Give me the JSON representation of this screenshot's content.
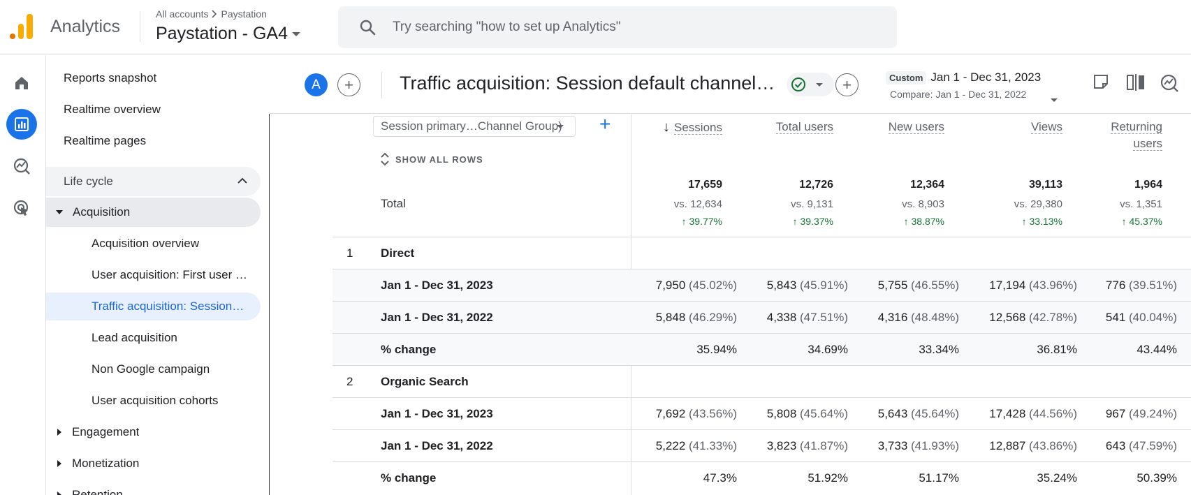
{
  "header": {
    "app_name": "Analytics",
    "breadcrumb": [
      "All accounts",
      "Paystation"
    ],
    "property": "Paystation - GA4",
    "search_placeholder": "Try searching \"how to set up Analytics\""
  },
  "rail": {
    "items": [
      {
        "name": "home-icon",
        "active": false
      },
      {
        "name": "reports-icon",
        "active": true
      },
      {
        "name": "explore-icon",
        "active": false
      },
      {
        "name": "advertising-icon",
        "active": false
      }
    ]
  },
  "nav": {
    "top_items": [
      "Reports snapshot",
      "Realtime overview",
      "Realtime pages"
    ],
    "section": "Life cycle",
    "group": "Acquisition",
    "sub_items": [
      "Acquisition overview",
      "User acquisition: First user …",
      "Traffic acquisition: Session…",
      "Lead acquisition",
      "Non Google campaign",
      "User acquisition cohorts"
    ],
    "collapsed_groups": [
      "Engagement",
      "Monetization",
      "Retention"
    ]
  },
  "report": {
    "avatar": "A",
    "title": "Traffic acquisition: Session default channel…",
    "date_badge": "Custom",
    "date_range": "Jan 1 - Dec 31, 2023",
    "compare": "Compare: Jan 1 - Dec 31, 2022"
  },
  "table": {
    "dimension": "Session primary…Channel Group)",
    "show_all_rows": "SHOW ALL ROWS",
    "sort_arrow": "↓",
    "columns": [
      "Sessions",
      "Total users",
      "New users",
      "Views",
      "Returning users"
    ],
    "total_label": "Total",
    "totals": [
      {
        "value": "17,659",
        "vs": "vs. 12,634",
        "change": "39.77%"
      },
      {
        "value": "12,726",
        "vs": "vs. 9,131",
        "change": "39.37%"
      },
      {
        "value": "12,364",
        "vs": "vs. 8,903",
        "change": "38.87%"
      },
      {
        "value": "39,113",
        "vs": "vs. 29,380",
        "change": "33.13%"
      },
      {
        "value": "1,964",
        "vs": "vs. 1,351",
        "change": "45.37%"
      }
    ],
    "groups": [
      {
        "index": "1",
        "name": "Direct",
        "rows": [
          {
            "label": "Jan 1 - Dec 31, 2023",
            "cells": [
              [
                "7,950",
                "(45.02%)"
              ],
              [
                "5,843",
                "(45.91%)"
              ],
              [
                "5,755",
                "(46.55%)"
              ],
              [
                "17,194",
                "(43.96%)"
              ],
              [
                "776",
                "(39.51%)"
              ]
            ]
          },
          {
            "label": "Jan 1 - Dec 31, 2022",
            "cells": [
              [
                "5,848",
                "(46.29%)"
              ],
              [
                "4,338",
                "(47.51%)"
              ],
              [
                "4,316",
                "(48.48%)"
              ],
              [
                "12,568",
                "(42.78%)"
              ],
              [
                "541",
                "(40.04%)"
              ]
            ]
          },
          {
            "label": "% change",
            "cells": [
              [
                "35.94%",
                ""
              ],
              [
                "34.69%",
                ""
              ],
              [
                "33.34%",
                ""
              ],
              [
                "36.81%",
                ""
              ],
              [
                "43.44%",
                ""
              ]
            ]
          }
        ]
      },
      {
        "index": "2",
        "name": "Organic Search",
        "rows": [
          {
            "label": "Jan 1 - Dec 31, 2023",
            "cells": [
              [
                "7,692",
                "(43.56%)"
              ],
              [
                "5,808",
                "(45.64%)"
              ],
              [
                "5,643",
                "(45.64%)"
              ],
              [
                "17,428",
                "(44.56%)"
              ],
              [
                "967",
                "(49.24%)"
              ]
            ]
          },
          {
            "label": "Jan 1 - Dec 31, 2022",
            "cells": [
              [
                "5,222",
                "(41.33%)"
              ],
              [
                "3,823",
                "(41.87%)"
              ],
              [
                "3,733",
                "(41.93%)"
              ],
              [
                "12,887",
                "(43.86%)"
              ],
              [
                "643",
                "(47.59%)"
              ]
            ]
          },
          {
            "label": "% change",
            "cells": [
              [
                "47.3%",
                ""
              ],
              [
                "51.92%",
                ""
              ],
              [
                "51.17%",
                ""
              ],
              [
                "35.24%",
                ""
              ],
              [
                "50.39%",
                ""
              ]
            ]
          }
        ]
      }
    ]
  }
}
